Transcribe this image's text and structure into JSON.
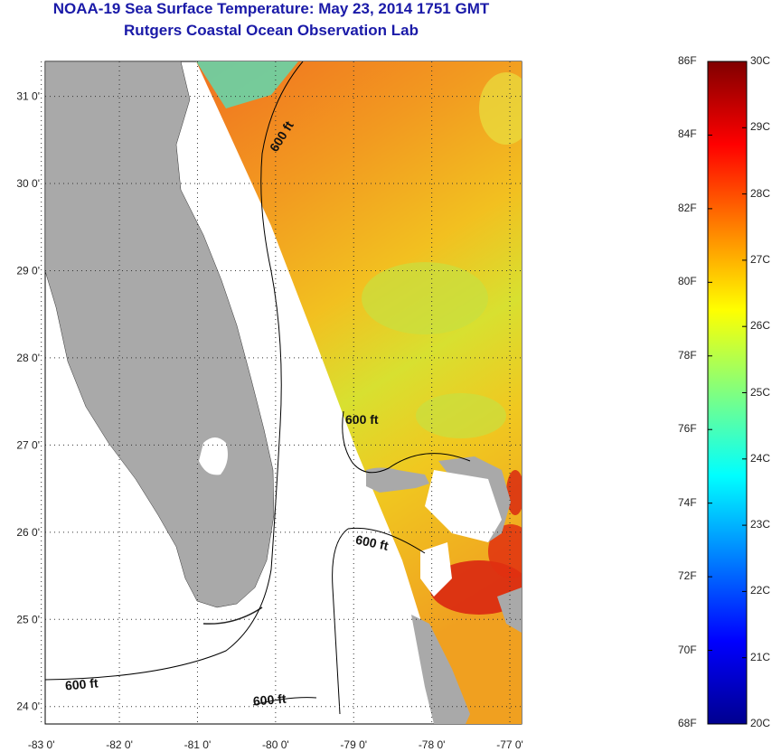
{
  "header": {
    "title": "NOAA-19 Sea Surface Temperature:  May 23, 2014 1751 GMT",
    "subtitle": "Rutgers Coastal Ocean Observation Lab"
  },
  "axes": {
    "lat_labels": [
      "31 0'",
      "30 0'",
      "29 0'",
      "28 0'",
      "27 0'",
      "26 0'",
      "25 0'",
      "24 0'"
    ],
    "lon_labels": [
      "-83 0'",
      "-82 0'",
      "-81 0'",
      "-80 0'",
      "-79 0'",
      "-78 0'",
      "-77 0'"
    ],
    "lat_range": [
      23.8,
      31.4
    ],
    "lon_range": [
      -82.95,
      -76.85
    ],
    "grid": "dotted"
  },
  "contours": {
    "label": "600 ft",
    "label_count": 5
  },
  "colorbar": {
    "fahrenheit_labels": [
      "86F",
      "84F",
      "82F",
      "80F",
      "78F",
      "76F",
      "74F",
      "72F",
      "70F",
      "68F"
    ],
    "celsius_labels": [
      "30C",
      "29C",
      "28C",
      "27C",
      "26C",
      "25C",
      "24C",
      "23C",
      "22C",
      "21C",
      "20C"
    ],
    "range_c": [
      20,
      30
    ],
    "colormap": "jet"
  },
  "colors": {
    "land": "#a9a9a9",
    "title": "#1a1aa8",
    "sst_warm": "#f07a1a",
    "sst_mid": "#f0d020",
    "sst_cool": "#a8e050",
    "sst_hot": "#d81a10"
  }
}
